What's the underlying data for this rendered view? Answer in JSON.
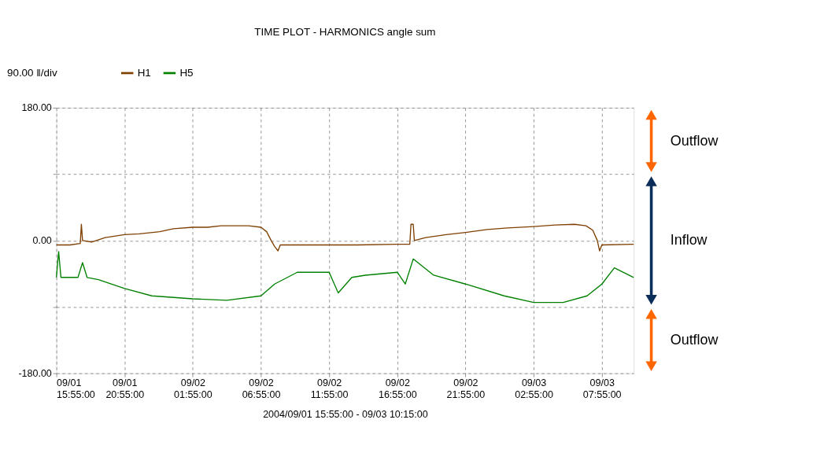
{
  "chart_data": {
    "type": "line",
    "title": "TIME PLOT - HARMONICS  angle sum",
    "xlabel": "2004/09/01 15:55:00 - 09/03 10:15:00",
    "xlim": [
      "2004-09-01T15:55",
      "2004-09-03T10:15"
    ],
    "xticks": [
      {
        "value": "2004-09-01T15:55",
        "label": "09/01\n15:55:00"
      },
      {
        "value": "2004-09-01T20:55",
        "label": "09/01\n20:55:00"
      },
      {
        "value": "2004-09-02T01:55",
        "label": "09/02\n01:55:00"
      },
      {
        "value": "2004-09-02T06:55",
        "label": "09/02\n06:55:00"
      },
      {
        "value": "2004-09-02T11:55",
        "label": "09/02\n11:55:00"
      },
      {
        "value": "2004-09-02T16:55",
        "label": "09/02\n16:55:00"
      },
      {
        "value": "2004-09-02T21:55",
        "label": "09/02\n21:55:00"
      },
      {
        "value": "2004-09-03T02:55",
        "label": "09/03\n02:55:00"
      },
      {
        "value": "2004-09-03T07:55",
        "label": "09/03\n07:55:00"
      }
    ],
    "ylim": [
      -180,
      180
    ],
    "yticks": [
      {
        "value": -180,
        "label": "-180.00"
      },
      {
        "value": -90,
        "label": null
      },
      {
        "value": 0,
        "label": "0.00"
      },
      {
        "value": 90,
        "label": null
      },
      {
        "value": 180,
        "label": "180.00"
      }
    ],
    "grid": true,
    "legend": "top left",
    "line_style": "solid",
    "marker": "none",
    "annotations": [
      "90.00 ‖/div",
      "Outflow",
      "Inflow",
      "Outflow"
    ],
    "series": [
      {
        "name": "H1",
        "color": "#7f3f00",
        "x": [
          "2004-09-01T15:55",
          "2004-09-01T16:55",
          "2004-09-01T17:40",
          "2004-09-01T17:45",
          "2004-09-01T17:50",
          "2004-09-01T18:30",
          "2004-09-01T19:30",
          "2004-09-01T20:55",
          "2004-09-01T22:00",
          "2004-09-01T23:30",
          "2004-09-02T00:30",
          "2004-09-02T01:55",
          "2004-09-02T03:00",
          "2004-09-02T04:00",
          "2004-09-02T05:00",
          "2004-09-02T06:00",
          "2004-09-02T06:55",
          "2004-09-02T07:20",
          "2004-09-02T07:40",
          "2004-09-02T07:55",
          "2004-09-02T08:10",
          "2004-09-02T08:20",
          "2004-09-02T10:00",
          "2004-09-02T11:55",
          "2004-09-02T14:00",
          "2004-09-02T16:55",
          "2004-09-02T17:50",
          "2004-09-02T17:55",
          "2004-09-02T18:05",
          "2004-09-02T18:10",
          "2004-09-02T19:00",
          "2004-09-02T20:30",
          "2004-09-02T21:55",
          "2004-09-02T23:30",
          "2004-09-03T01:00",
          "2004-09-03T02:55",
          "2004-09-03T04:30",
          "2004-09-03T05:55",
          "2004-09-03T06:45",
          "2004-09-03T07:15",
          "2004-09-03T07:35",
          "2004-09-03T07:45",
          "2004-09-03T07:55",
          "2004-09-03T10:15"
        ],
        "values": [
          -6,
          -6,
          -4,
          22,
          0,
          -2,
          4,
          8,
          9,
          12,
          16,
          18,
          18,
          20,
          20,
          20,
          18,
          12,
          0,
          -8,
          -14,
          -6,
          -6,
          -6,
          -6,
          -5,
          -5,
          22,
          22,
          0,
          4,
          8,
          11,
          15,
          17,
          19,
          21,
          22,
          20,
          14,
          0,
          -14,
          -6,
          -5
        ]
      },
      {
        "name": "H5",
        "color": "#008000",
        "x": [
          "2004-09-01T15:55",
          "2004-09-01T16:05",
          "2004-09-01T16:15",
          "2004-09-01T17:30",
          "2004-09-01T17:50",
          "2004-09-01T18:10",
          "2004-09-01T19:00",
          "2004-09-01T20:55",
          "2004-09-01T22:55",
          "2004-09-02T01:55",
          "2004-09-02T04:25",
          "2004-09-02T06:55",
          "2004-09-02T07:55",
          "2004-09-02T09:35",
          "2004-09-02T11:55",
          "2004-09-02T12:35",
          "2004-09-02T13:35",
          "2004-09-02T14:35",
          "2004-09-02T16:55",
          "2004-09-02T17:30",
          "2004-09-02T18:05",
          "2004-09-02T19:35",
          "2004-09-02T21:55",
          "2004-09-03T00:45",
          "2004-09-03T02:55",
          "2004-09-03T05:05",
          "2004-09-03T06:50",
          "2004-09-03T07:55",
          "2004-09-03T08:50",
          "2004-09-03T10:15"
        ],
        "values": [
          -50,
          -15,
          -50,
          -50,
          -30,
          -50,
          -53,
          -65,
          -75,
          -79,
          -81,
          -75,
          -59,
          -43,
          -43,
          -71,
          -50,
          -47,
          -43,
          -59,
          -25,
          -47,
          -59,
          -75,
          -84,
          -84,
          -75,
          -59,
          -37,
          -50
        ]
      }
    ]
  }
}
